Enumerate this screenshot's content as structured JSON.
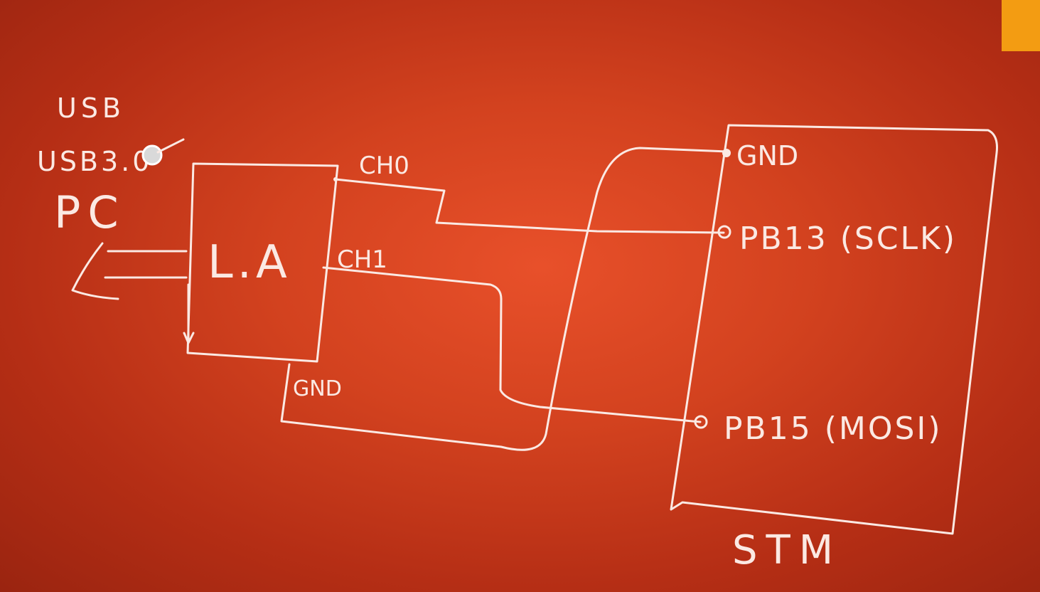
{
  "colors": {
    "background": "#d3421f",
    "ink": "#fbe9e3",
    "accent": "#f39c12"
  },
  "pc": {
    "usb_label": "USB",
    "usb_version": "USB3.0",
    "pc_label": "PC"
  },
  "analyzer": {
    "label": "L.A",
    "ch0": "CH0",
    "ch1": "CH1",
    "gnd": "GND"
  },
  "stm": {
    "label": "STM",
    "pins": {
      "gnd": "GND",
      "pb13": "PB13 (SCLK)",
      "pb15": "PB15 (MOSI)"
    }
  }
}
